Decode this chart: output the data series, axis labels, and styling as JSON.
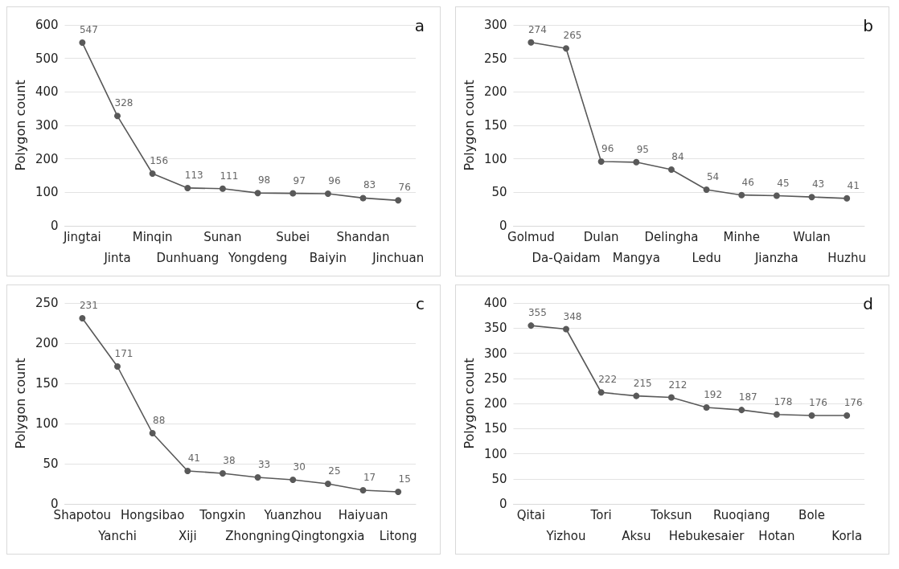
{
  "chart_data": [
    {
      "type": "line",
      "title": "a",
      "ylabel": "Polygon count",
      "categories": [
        "Jingtai",
        "Jinta",
        "Minqin",
        "Dunhuang",
        "Sunan",
        "Yongdeng",
        "Subei",
        "Baiyin",
        "Shandan",
        "Jinchuan"
      ],
      "series": [
        {
          "color": "#595959",
          "values": [
            547,
            328,
            156,
            113,
            111,
            98,
            97,
            96,
            83,
            76
          ]
        }
      ],
      "ylim": [
        0,
        600
      ],
      "yticks": [
        0,
        100,
        200,
        300,
        400,
        500,
        600
      ],
      "grid": "y",
      "marker": "circle",
      "line_style": "solid",
      "data_labels": true
    },
    {
      "type": "line",
      "title": "b",
      "ylabel": "Polygon count",
      "categories": [
        "Golmud",
        "Da-Qaidam",
        "Dulan",
        "Mangya",
        "Delingha",
        "Ledu",
        "Minhe",
        "Jianzha",
        "Wulan",
        "Huzhu"
      ],
      "series": [
        {
          "color": "#595959",
          "values": [
            274,
            265,
            96,
            95,
            84,
            54,
            46,
            45,
            43,
            41
          ]
        }
      ],
      "ylim": [
        0,
        300
      ],
      "yticks": [
        0,
        50,
        100,
        150,
        200,
        250,
        300
      ],
      "grid": "y",
      "marker": "circle",
      "line_style": "solid",
      "data_labels": true
    },
    {
      "type": "line",
      "title": "c",
      "ylabel": "Polygon count",
      "categories": [
        "Shapotou",
        "Yanchi",
        "Hongsibao",
        "Xiji",
        "Tongxin",
        "Zhongning",
        "Yuanzhou",
        "Qingtongxia",
        "Haiyuan",
        "Litong"
      ],
      "series": [
        {
          "color": "#595959",
          "values": [
            231,
            171,
            88,
            41,
            38,
            33,
            30,
            25,
            17,
            15
          ]
        }
      ],
      "ylim": [
        0,
        250
      ],
      "yticks": [
        0,
        50,
        100,
        150,
        200,
        250
      ],
      "grid": "y",
      "marker": "circle",
      "line_style": "solid",
      "data_labels": true
    },
    {
      "type": "line",
      "title": "d",
      "ylabel": "Polygon count",
      "categories": [
        "Qitai",
        "Yizhou",
        "Tori",
        "Aksu",
        "Toksun",
        "Hebukesaier",
        "Ruoqiang",
        "Hotan",
        "Bole",
        "Korla"
      ],
      "series": [
        {
          "color": "#595959",
          "values": [
            355,
            348,
            222,
            215,
            212,
            192,
            187,
            178,
            176,
            176
          ]
        }
      ],
      "ylim": [
        0,
        400
      ],
      "yticks": [
        0,
        50,
        100,
        150,
        200,
        250,
        300,
        350,
        400
      ],
      "grid": "y",
      "marker": "circle",
      "line_style": "solid",
      "data_labels": true
    }
  ]
}
